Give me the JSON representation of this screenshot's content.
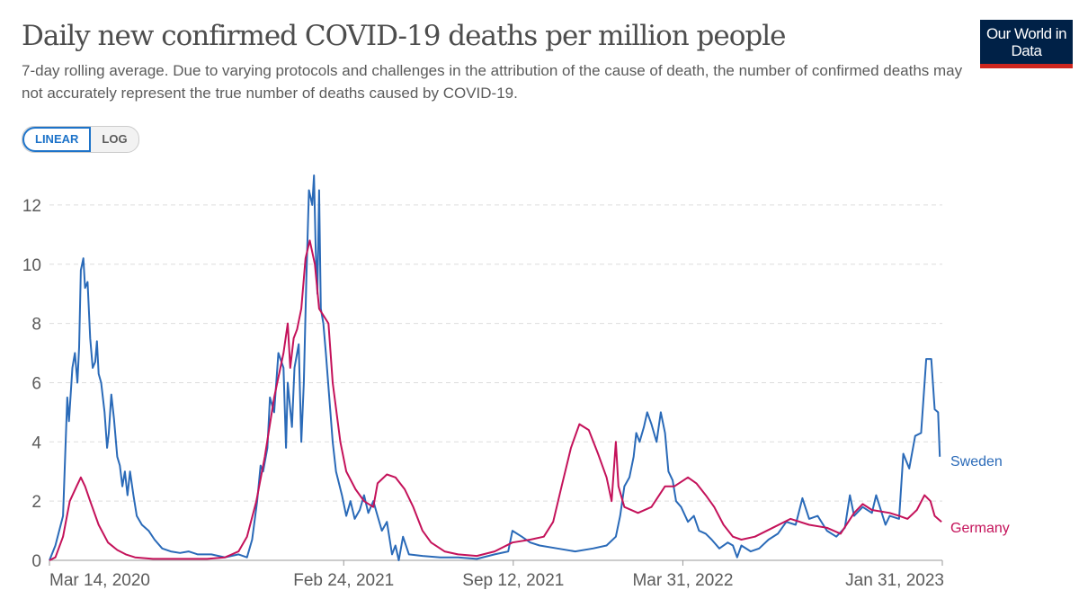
{
  "header": {
    "title": "Daily new confirmed COVID-19 deaths per million people",
    "subtitle": "7-day rolling average. Due to varying protocols and challenges in the attribution of the cause of death, the number of confirmed deaths may not accurately represent the true number of deaths caused by COVID-19.",
    "logo": "Our World in Data"
  },
  "toggle": {
    "linear": "LINEAR",
    "log": "LOG",
    "selected": "LINEAR"
  },
  "chart_data": {
    "type": "line",
    "title": "Daily new confirmed COVID-19 deaths per million people",
    "x_unit": "days since 2020-03-14",
    "xlim": [
      0,
      1053
    ],
    "ylim": [
      0,
      13
    ],
    "yticks": [
      0,
      2,
      4,
      6,
      8,
      10,
      12
    ],
    "ytick_labels": [
      "0",
      "2",
      "4",
      "6",
      "8",
      "10",
      "12"
    ],
    "xticks": [
      {
        "day": 0,
        "label": "Mar 14, 2020"
      },
      {
        "day": 347,
        "label": "Feb 24, 2021"
      },
      {
        "day": 547,
        "label": "Sep 12, 2021"
      },
      {
        "day": 747,
        "label": "Mar 31, 2022"
      },
      {
        "day": 1053,
        "label": "Jan 31, 2023"
      }
    ],
    "grid": true,
    "legend": "inline-right",
    "series": [
      {
        "name": "Sweden",
        "color": "#2a6ab8",
        "points": [
          [
            0,
            0
          ],
          [
            7,
            0.5
          ],
          [
            16,
            1.5
          ],
          [
            21,
            5.5
          ],
          [
            23,
            4.7
          ],
          [
            27,
            6.5
          ],
          [
            30,
            7
          ],
          [
            33,
            6
          ],
          [
            35,
            7.2
          ],
          [
            37,
            9.8
          ],
          [
            40,
            10.2
          ],
          [
            42,
            9.2
          ],
          [
            45,
            9.4
          ],
          [
            48,
            7.5
          ],
          [
            51,
            6.5
          ],
          [
            54,
            6.7
          ],
          [
            56,
            7.4
          ],
          [
            58,
            6.3
          ],
          [
            61,
            6
          ],
          [
            65,
            5
          ],
          [
            68,
            3.8
          ],
          [
            70,
            4.3
          ],
          [
            73,
            5.6
          ],
          [
            76,
            4.8
          ],
          [
            80,
            3.5
          ],
          [
            83,
            3.2
          ],
          [
            86,
            2.5
          ],
          [
            89,
            3
          ],
          [
            92,
            2.2
          ],
          [
            95,
            3
          ],
          [
            99,
            2.2
          ],
          [
            103,
            1.5
          ],
          [
            109,
            1.2
          ],
          [
            117,
            1
          ],
          [
            124,
            0.7
          ],
          [
            133,
            0.4
          ],
          [
            143,
            0.3
          ],
          [
            154,
            0.25
          ],
          [
            164,
            0.3
          ],
          [
            175,
            0.2
          ],
          [
            191,
            0.2
          ],
          [
            207,
            0.1
          ],
          [
            223,
            0.2
          ],
          [
            233,
            0.1
          ],
          [
            239,
            0.7
          ],
          [
            245,
            2
          ],
          [
            249,
            3.2
          ],
          [
            252,
            3
          ],
          [
            257,
            3.8
          ],
          [
            260,
            5.5
          ],
          [
            265,
            5
          ],
          [
            270,
            7
          ],
          [
            276,
            6.5
          ],
          [
            279,
            3.8
          ],
          [
            281,
            6
          ],
          [
            286,
            4.5
          ],
          [
            289,
            6.5
          ],
          [
            294,
            7.3
          ],
          [
            297,
            4
          ],
          [
            300,
            6
          ],
          [
            303,
            9.5
          ],
          [
            306,
            12.5
          ],
          [
            310,
            12
          ],
          [
            312,
            13
          ],
          [
            314,
            10.5
          ],
          [
            316,
            9
          ],
          [
            318,
            12.5
          ],
          [
            320,
            8.5
          ],
          [
            323,
            8
          ],
          [
            326,
            7
          ],
          [
            330,
            5.5
          ],
          [
            334,
            4
          ],
          [
            338,
            3
          ],
          [
            345,
            2.2
          ],
          [
            350,
            1.5
          ],
          [
            355,
            2
          ],
          [
            360,
            1.4
          ],
          [
            366,
            1.7
          ],
          [
            371,
            2.2
          ],
          [
            376,
            1.6
          ],
          [
            382,
            2
          ],
          [
            387,
            1.5
          ],
          [
            392,
            1
          ],
          [
            398,
            1.3
          ],
          [
            404,
            0.2
          ],
          [
            408,
            0.5
          ],
          [
            412,
            0
          ],
          [
            417,
            0.8
          ],
          [
            424,
            0.2
          ],
          [
            440,
            0.15
          ],
          [
            461,
            0.1
          ],
          [
            482,
            0.1
          ],
          [
            504,
            0.05
          ],
          [
            525,
            0.2
          ],
          [
            541,
            0.3
          ],
          [
            546,
            1
          ],
          [
            557,
            0.8
          ],
          [
            567,
            0.6
          ],
          [
            578,
            0.5
          ],
          [
            599,
            0.4
          ],
          [
            620,
            0.3
          ],
          [
            641,
            0.4
          ],
          [
            657,
            0.5
          ],
          [
            668,
            0.8
          ],
          [
            673,
            1.5
          ],
          [
            678,
            2.5
          ],
          [
            684,
            2.8
          ],
          [
            689,
            3.5
          ],
          [
            692,
            4.3
          ],
          [
            696,
            4
          ],
          [
            701,
            4.5
          ],
          [
            705,
            5
          ],
          [
            710,
            4.6
          ],
          [
            716,
            4
          ],
          [
            721,
            5
          ],
          [
            726,
            4.3
          ],
          [
            730,
            3
          ],
          [
            735,
            2.7
          ],
          [
            739,
            2
          ],
          [
            745,
            1.8
          ],
          [
            753,
            1.3
          ],
          [
            760,
            1.5
          ],
          [
            766,
            1
          ],
          [
            774,
            0.9
          ],
          [
            781,
            0.7
          ],
          [
            790,
            0.4
          ],
          [
            800,
            0.6
          ],
          [
            806,
            0.5
          ],
          [
            811,
            0.1
          ],
          [
            816,
            0.5
          ],
          [
            827,
            0.3
          ],
          [
            837,
            0.4
          ],
          [
            848,
            0.7
          ],
          [
            859,
            0.9
          ],
          [
            869,
            1.3
          ],
          [
            880,
            1.2
          ],
          [
            888,
            2.1
          ],
          [
            896,
            1.4
          ],
          [
            906,
            1.5
          ],
          [
            917,
            1
          ],
          [
            928,
            0.8
          ],
          [
            938,
            1.1
          ],
          [
            944,
            2.2
          ],
          [
            949,
            1.5
          ],
          [
            959,
            1.8
          ],
          [
            970,
            1.6
          ],
          [
            975,
            2.2
          ],
          [
            986,
            1.2
          ],
          [
            991,
            1.5
          ],
          [
            1002,
            1.4
          ],
          [
            1007,
            3.6
          ],
          [
            1014,
            3.1
          ],
          [
            1021,
            4.2
          ],
          [
            1028,
            4.3
          ],
          [
            1034,
            6.8
          ],
          [
            1040,
            6.8
          ],
          [
            1044,
            5.1
          ],
          [
            1048,
            5
          ],
          [
            1050,
            3.5
          ]
        ]
      },
      {
        "name": "Germany",
        "color": "#c4125a",
        "points": [
          [
            0,
            0
          ],
          [
            7,
            0.1
          ],
          [
            16,
            0.8
          ],
          [
            24,
            2
          ],
          [
            32,
            2.5
          ],
          [
            37,
            2.8
          ],
          [
            42,
            2.5
          ],
          [
            48,
            2
          ],
          [
            58,
            1.2
          ],
          [
            69,
            0.6
          ],
          [
            80,
            0.35
          ],
          [
            90,
            0.2
          ],
          [
            101,
            0.1
          ],
          [
            122,
            0.05
          ],
          [
            154,
            0.05
          ],
          [
            186,
            0.05
          ],
          [
            207,
            0.1
          ],
          [
            223,
            0.3
          ],
          [
            233,
            0.8
          ],
          [
            244,
            2
          ],
          [
            254,
            3.5
          ],
          [
            265,
            5.5
          ],
          [
            276,
            7
          ],
          [
            281,
            8
          ],
          [
            284,
            6.5
          ],
          [
            288,
            7.5
          ],
          [
            292,
            7.8
          ],
          [
            297,
            8.5
          ],
          [
            302,
            10.2
          ],
          [
            307,
            10.8
          ],
          [
            313,
            10
          ],
          [
            318,
            8.5
          ],
          [
            329,
            8
          ],
          [
            334,
            6
          ],
          [
            343,
            4
          ],
          [
            350,
            3
          ],
          [
            361,
            2.4
          ],
          [
            371,
            2
          ],
          [
            382,
            1.8
          ],
          [
            387,
            2.6
          ],
          [
            398,
            2.9
          ],
          [
            408,
            2.8
          ],
          [
            419,
            2.4
          ],
          [
            429,
            1.8
          ],
          [
            440,
            1
          ],
          [
            450,
            0.6
          ],
          [
            466,
            0.3
          ],
          [
            482,
            0.2
          ],
          [
            504,
            0.15
          ],
          [
            525,
            0.3
          ],
          [
            546,
            0.6
          ],
          [
            567,
            0.7
          ],
          [
            583,
            0.8
          ],
          [
            594,
            1.3
          ],
          [
            604,
            2.5
          ],
          [
            615,
            3.8
          ],
          [
            625,
            4.6
          ],
          [
            636,
            4.4
          ],
          [
            647,
            3.6
          ],
          [
            657,
            2.8
          ],
          [
            663,
            2
          ],
          [
            668,
            4
          ],
          [
            671,
            2.5
          ],
          [
            678,
            1.8
          ],
          [
            694,
            1.6
          ],
          [
            710,
            1.8
          ],
          [
            726,
            2.5
          ],
          [
            737,
            2.5
          ],
          [
            753,
            2.8
          ],
          [
            763,
            2.6
          ],
          [
            774,
            2.2
          ],
          [
            784,
            1.8
          ],
          [
            795,
            1.2
          ],
          [
            806,
            0.8
          ],
          [
            816,
            0.7
          ],
          [
            832,
            0.8
          ],
          [
            853,
            1.1
          ],
          [
            874,
            1.4
          ],
          [
            896,
            1.2
          ],
          [
            917,
            1.1
          ],
          [
            933,
            0.9
          ],
          [
            949,
            1.6
          ],
          [
            959,
            1.9
          ],
          [
            970,
            1.7
          ],
          [
            991,
            1.6
          ],
          [
            1002,
            1.5
          ],
          [
            1012,
            1.4
          ],
          [
            1023,
            1.7
          ],
          [
            1032,
            2.2
          ],
          [
            1039,
            2
          ],
          [
            1044,
            1.5
          ],
          [
            1052,
            1.3
          ]
        ]
      }
    ]
  }
}
